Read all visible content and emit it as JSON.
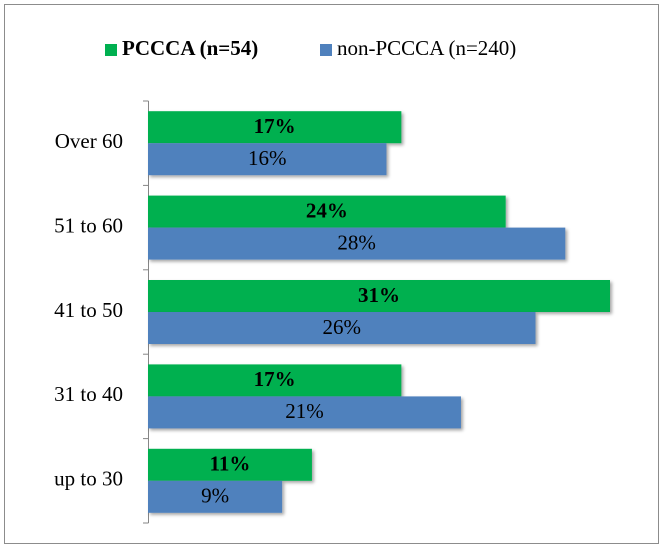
{
  "chart_data": {
    "type": "hbar",
    "categories": [
      "Over 60",
      "51 to 60",
      "41 to 50",
      "31 to 40",
      "up to 30"
    ],
    "series": [
      {
        "name": "PCCCA (n=54)",
        "color": "#00b050",
        "bold": true,
        "values": [
          17,
          24,
          31,
          17,
          11
        ],
        "value_labels": [
          "17%",
          "24%",
          "31%",
          "17%",
          "11%"
        ]
      },
      {
        "name": "non-PCCCA (n=240)",
        "color": "#4f81bd",
        "bold": false,
        "values": [
          16,
          28,
          26,
          21,
          9
        ],
        "value_labels": [
          "16%",
          "28%",
          "26%",
          "21%",
          "9%"
        ]
      }
    ],
    "legend": "top"
  }
}
